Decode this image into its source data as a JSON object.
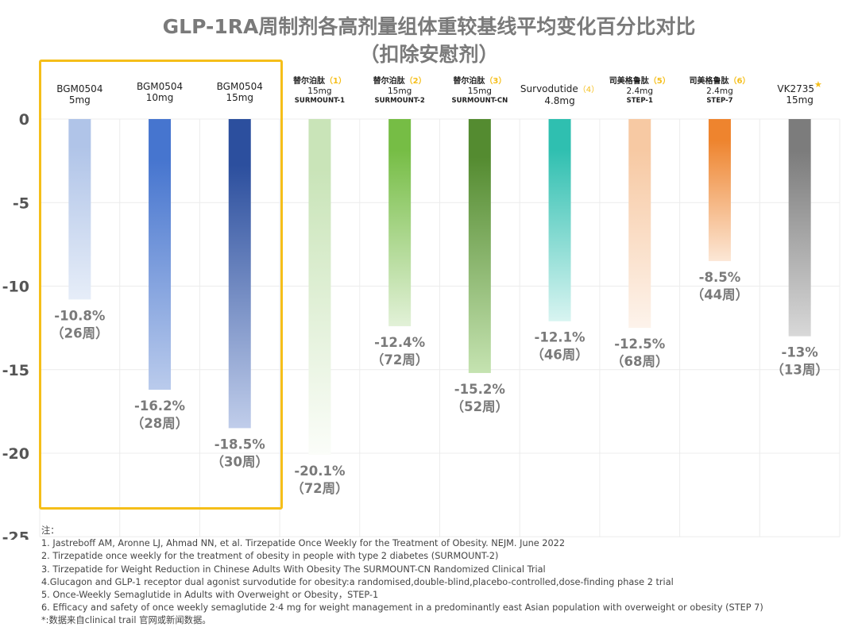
{
  "title_line1": "GLP-1RA周制剂各高剂量组体重较基线平均变化百分比对比",
  "title_line2": "（扣除安慰剂）",
  "highlight_color": "#F5BE19",
  "categories": [
    {
      "name": "BGM0504",
      "dose": "5mg",
      "ref": "",
      "trial": ""
    },
    {
      "name": "BGM0504",
      "dose": "10mg",
      "ref": "",
      "trial": ""
    },
    {
      "name": "BGM0504",
      "dose": "15mg",
      "ref": "",
      "trial": ""
    },
    {
      "name": "替尔泊肽",
      "dose": "15mg",
      "ref": "（1）",
      "trial": "SURMOUNT-1"
    },
    {
      "name": "替尔泊肽",
      "dose": "15mg",
      "ref": "（2）",
      "trial": "SURMOUNT-2"
    },
    {
      "name": "替尔泊肽",
      "dose": "15mg",
      "ref": "（3）",
      "trial": "SURMOUNT-CN"
    },
    {
      "name": "Survodutide",
      "dose": "4.8mg",
      "ref": "（4）",
      "trial": ""
    },
    {
      "name": "司美格鲁肽",
      "dose": "2.4mg",
      "ref": "（5）",
      "trial": "STEP-1"
    },
    {
      "name": "司美格鲁肽",
      "dose": "2.4mg",
      "ref": "（6）",
      "trial": "STEP-7"
    },
    {
      "name": "VK2735",
      "dose": "15mg",
      "ref": "",
      "trial": "",
      "star": "*"
    }
  ],
  "chart_data": {
    "type": "bar",
    "title": "GLP-1RA周制剂各高剂量组体重较基线平均变化百分比对比（扣除安慰剂）",
    "categories": [
      "BGM0504 5mg",
      "BGM0504 10mg",
      "BGM0504 15mg",
      "替尔泊肽 15mg SURMOUNT-1",
      "替尔泊肽 15mg SURMOUNT-2",
      "替尔泊肽 15mg SURMOUNT-CN",
      "Survodutide 4.8mg",
      "司美格鲁肽 2.4mg STEP-1",
      "司美格鲁肽 2.4mg STEP-7",
      "VK2735 15mg"
    ],
    "values": [
      -10.8,
      -16.2,
      -18.5,
      -20.1,
      -12.4,
      -15.2,
      -12.1,
      -12.5,
      -8.5,
      -13
    ],
    "value_labels": [
      "-10.8%",
      "-16.2%",
      "-18.5%",
      "-20.1%",
      "-12.4%",
      "-15.2%",
      "-12.1%",
      "-12.5%",
      "-8.5%",
      "-13%"
    ],
    "week_labels": [
      "（26周）",
      "（28周）",
      "（30周）",
      "（72周）",
      "（72周）",
      "（52周）",
      "（46周）",
      "（68周）",
      "（44周）",
      "（13周）"
    ],
    "colors": [
      [
        "#B0C4E8",
        "#E6EDF8"
      ],
      [
        "#4675CF",
        "#BACBEC"
      ],
      [
        "#2C4F9E",
        "#C0CDEA"
      ],
      [
        "#C9E4B8",
        "#FBFDF9"
      ],
      [
        "#76BD45",
        "#E2F1D8"
      ],
      [
        "#548B30",
        "#C5E3B1"
      ],
      [
        "#2FBFB0",
        "#D8F4F1"
      ],
      [
        "#F7C9A3",
        "#FDF3EB"
      ],
      [
        "#EE842E",
        "#FCE7D6"
      ],
      [
        "#7C7C7C",
        "#D8D8D8"
      ]
    ],
    "yticks": [
      0,
      -5,
      -10,
      -15,
      -20,
      -25
    ],
    "ylim": [
      -25,
      0
    ],
    "grid": true,
    "xlabel": "",
    "ylabel": ""
  },
  "notes": {
    "header": "注：",
    "items": [
      "1. Jastreboff AM, Aronne LJ, Ahmad NN, et al. Tirzepatide Once Weekly for the Treatment of Obesity. NEJM. June 2022",
      "2. Tirzepatide once weekly for the treatment of obesity in people with type 2 diabetes (SURMOUNT-2)",
      "3. Tirzepatide for Weight Reduction in Chinese Adults With Obesity The SURMOUNT-CN Randomized Clinical Trial",
      "4.Glucagon and GLP-1 receptor dual agonist survodutide for obesity:a randomised,double-blind,placebo-controlled,dose-finding phase 2 trial",
      "5. Once-Weekly Semaglutide in Adults with Overweight or Obesity，STEP-1",
      "6. Efficacy and safety of once weekly semaglutide 2·4 mg for weight management in a predominantly east Asian population with overweight or obesity (STEP 7)",
      "*:数据来自clinical trail 官网或新闻数据。"
    ]
  }
}
